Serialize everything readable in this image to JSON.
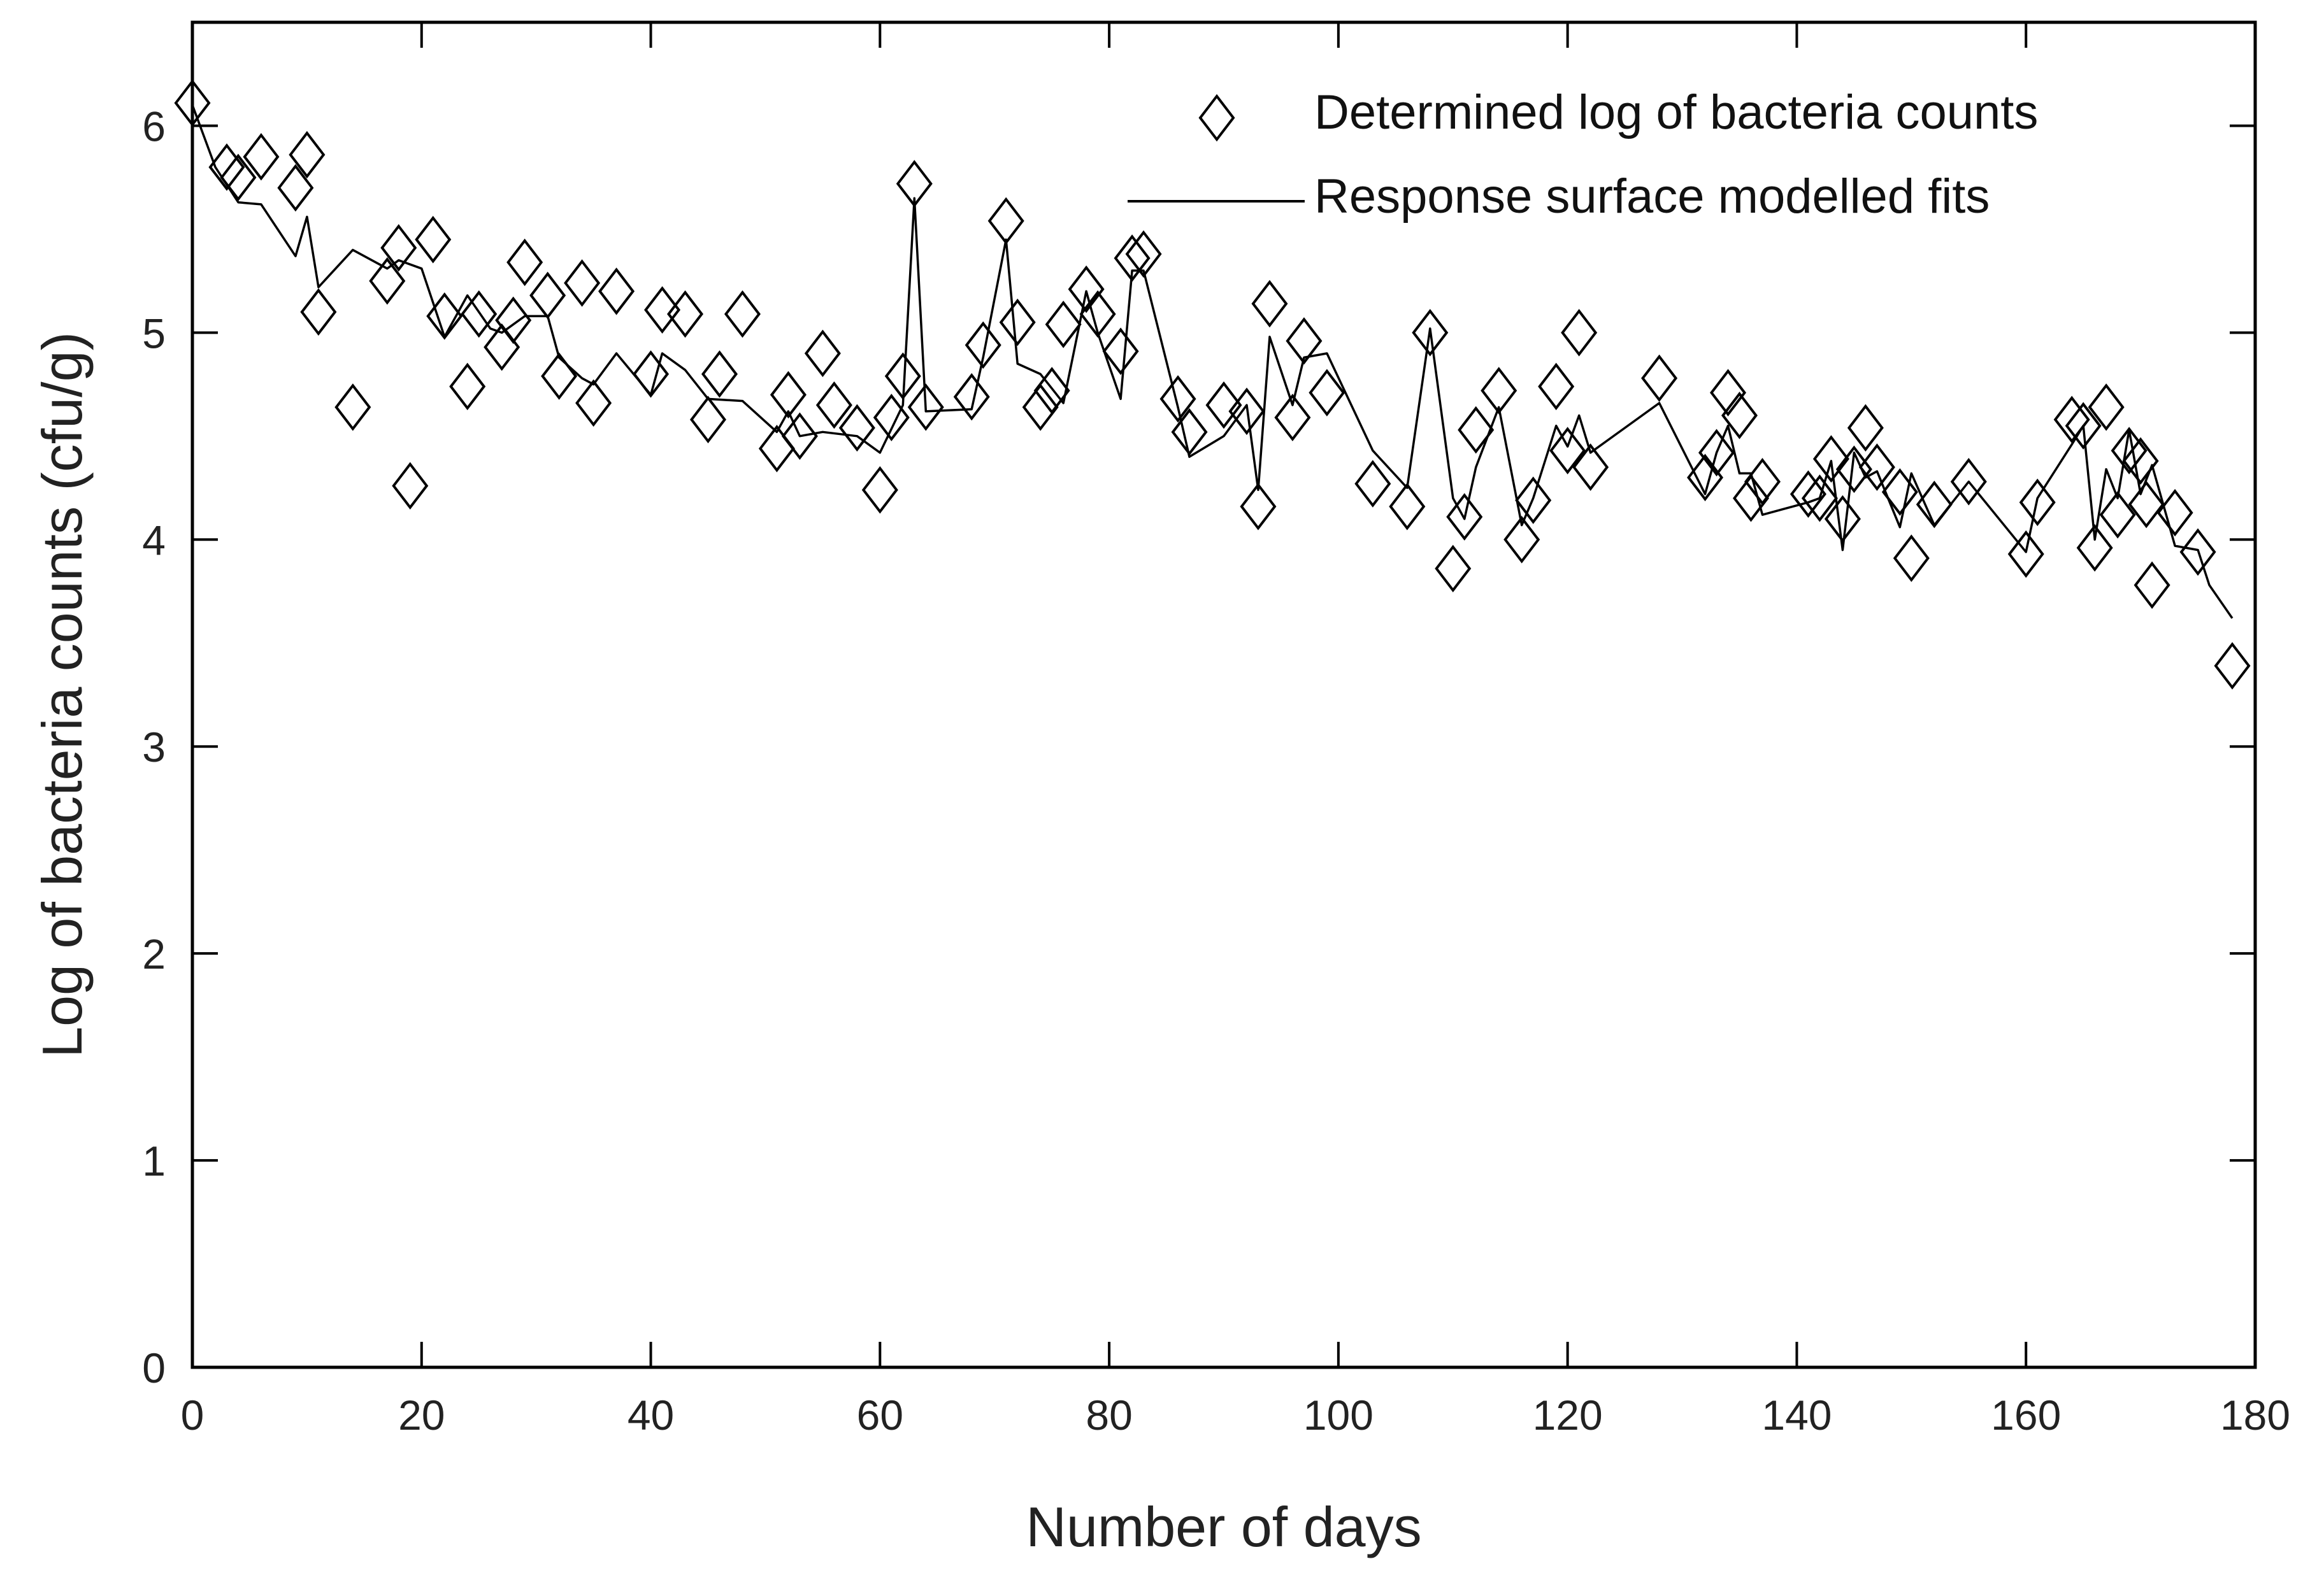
{
  "chart_data": {
    "type": "scatter",
    "xlabel": "Number of days",
    "ylabel": "Log of bacteria counts (cfu/g)",
    "xlim": [
      0,
      180
    ],
    "ylim": [
      0,
      6.5
    ],
    "x_ticks": [
      0,
      20,
      40,
      60,
      80,
      100,
      120,
      140,
      160,
      180
    ],
    "y_ticks": [
      0,
      1,
      2,
      3,
      4,
      5,
      6
    ],
    "grid": false,
    "legend_position": "top-right",
    "colors": {
      "ink": "#000000",
      "text": "#222222",
      "background": "#ffffff"
    },
    "series": [
      {
        "name": "Determined log of bacteria counts",
        "type": "scatter",
        "marker": "open-diamond",
        "points": [
          [
            0,
            6.11
          ],
          [
            3,
            5.8
          ],
          [
            4,
            5.75
          ],
          [
            6,
            5.85
          ],
          [
            9,
            5.7
          ],
          [
            10,
            5.86
          ],
          [
            11,
            5.1
          ],
          [
            14,
            4.64
          ],
          [
            17,
            5.25
          ],
          [
            18,
            5.41
          ],
          [
            19,
            4.26
          ],
          [
            21,
            5.45
          ],
          [
            22,
            5.08
          ],
          [
            24,
            4.74
          ],
          [
            25,
            5.09
          ],
          [
            27,
            4.93
          ],
          [
            28,
            5.06
          ],
          [
            29,
            5.34
          ],
          [
            31,
            5.18
          ],
          [
            32,
            4.79
          ],
          [
            34,
            5.24
          ],
          [
            35,
            4.66
          ],
          [
            37,
            5.2
          ],
          [
            40,
            4.8
          ],
          [
            41,
            5.11
          ],
          [
            43,
            5.09
          ],
          [
            45,
            4.58
          ],
          [
            46,
            4.8
          ],
          [
            48,
            5.09
          ],
          [
            51,
            4.44
          ],
          [
            52,
            4.7
          ],
          [
            53,
            4.5
          ],
          [
            55,
            4.9
          ],
          [
            56,
            4.65
          ],
          [
            58,
            4.54
          ],
          [
            60,
            4.24
          ],
          [
            61,
            4.59
          ],
          [
            62,
            4.79
          ],
          [
            63,
            5.72
          ],
          [
            64,
            4.64
          ],
          [
            68,
            4.69
          ],
          [
            69,
            4.94
          ],
          [
            71,
            5.54
          ],
          [
            72,
            5.05
          ],
          [
            74,
            4.64
          ],
          [
            75,
            4.72
          ],
          [
            76,
            5.04
          ],
          [
            78,
            5.21
          ],
          [
            79,
            5.09
          ],
          [
            81,
            4.91
          ],
          [
            82,
            5.36
          ],
          [
            83,
            5.38
          ],
          [
            86,
            4.68
          ],
          [
            87,
            4.52
          ],
          [
            90,
            4.65
          ],
          [
            92,
            4.62
          ],
          [
            93,
            4.16
          ],
          [
            94,
            5.14
          ],
          [
            96,
            4.59
          ],
          [
            97,
            4.96
          ],
          [
            99,
            4.71
          ],
          [
            103,
            4.27
          ],
          [
            106,
            4.16
          ],
          [
            108,
            5.0
          ],
          [
            110,
            3.86
          ],
          [
            111,
            4.11
          ],
          [
            112,
            4.53
          ],
          [
            114,
            4.72
          ],
          [
            116,
            4.0
          ],
          [
            117,
            4.19
          ],
          [
            119,
            4.74
          ],
          [
            120,
            4.43
          ],
          [
            121,
            5.0
          ],
          [
            122,
            4.35
          ],
          [
            128,
            4.78
          ],
          [
            132,
            4.3
          ],
          [
            133,
            4.42
          ],
          [
            134,
            4.71
          ],
          [
            135,
            4.6
          ],
          [
            136,
            4.2
          ],
          [
            137,
            4.28
          ],
          [
            141,
            4.22
          ],
          [
            142,
            4.2
          ],
          [
            143,
            4.39
          ],
          [
            144,
            4.1
          ],
          [
            145,
            4.34
          ],
          [
            146,
            4.54
          ],
          [
            147,
            4.35
          ],
          [
            149,
            4.23
          ],
          [
            150,
            3.91
          ],
          [
            152,
            4.17
          ],
          [
            155,
            4.28
          ],
          [
            160,
            3.93
          ],
          [
            161,
            4.18
          ],
          [
            164,
            4.58
          ],
          [
            165,
            4.55
          ],
          [
            166,
            3.96
          ],
          [
            167,
            4.64
          ],
          [
            168,
            4.12
          ],
          [
            169,
            4.43
          ],
          [
            170,
            4.38
          ],
          [
            170.5,
            4.17
          ],
          [
            171,
            3.78
          ],
          [
            173,
            4.13
          ],
          [
            175,
            3.94
          ],
          [
            178,
            3.39
          ]
        ]
      },
      {
        "name": "Response surface modelled fits",
        "type": "line",
        "points": [
          [
            0,
            6.1
          ],
          [
            2,
            5.8
          ],
          [
            4,
            5.63
          ],
          [
            6,
            5.62
          ],
          [
            9,
            5.37
          ],
          [
            10,
            5.56
          ],
          [
            11,
            5.22
          ],
          [
            14,
            5.4
          ],
          [
            17,
            5.31
          ],
          [
            18,
            5.35
          ],
          [
            20,
            5.31
          ],
          [
            22,
            4.98
          ],
          [
            24,
            5.18
          ],
          [
            26,
            5.02
          ],
          [
            27,
            5.0
          ],
          [
            29,
            5.08
          ],
          [
            31,
            5.08
          ],
          [
            32,
            4.88
          ],
          [
            34,
            4.78
          ],
          [
            35,
            4.75
          ],
          [
            37,
            4.9
          ],
          [
            40,
            4.7
          ],
          [
            41,
            4.9
          ],
          [
            43,
            4.82
          ],
          [
            45,
            4.68
          ],
          [
            48,
            4.67
          ],
          [
            51,
            4.52
          ],
          [
            52,
            4.62
          ],
          [
            53,
            4.5
          ],
          [
            55,
            4.52
          ],
          [
            58,
            4.5
          ],
          [
            60,
            4.42
          ],
          [
            62,
            4.65
          ],
          [
            63,
            5.65
          ],
          [
            64,
            4.62
          ],
          [
            68,
            4.63
          ],
          [
            69,
            4.88
          ],
          [
            71,
            5.45
          ],
          [
            72,
            4.85
          ],
          [
            74,
            4.8
          ],
          [
            75,
            4.73
          ],
          [
            76,
            4.66
          ],
          [
            78,
            5.2
          ],
          [
            79,
            5.0
          ],
          [
            81,
            4.68
          ],
          [
            82,
            5.3
          ],
          [
            83,
            5.3
          ],
          [
            86,
            4.64
          ],
          [
            87,
            4.4
          ],
          [
            90,
            4.5
          ],
          [
            92,
            4.65
          ],
          [
            93,
            4.24
          ],
          [
            94,
            4.98
          ],
          [
            96,
            4.65
          ],
          [
            97,
            4.88
          ],
          [
            99,
            4.9
          ],
          [
            103,
            4.43
          ],
          [
            106,
            4.25
          ],
          [
            108,
            5.02
          ],
          [
            110,
            4.2
          ],
          [
            111,
            4.1
          ],
          [
            112,
            4.35
          ],
          [
            114,
            4.64
          ],
          [
            116,
            4.07
          ],
          [
            117,
            4.2
          ],
          [
            119,
            4.55
          ],
          [
            120,
            4.45
          ],
          [
            121,
            4.6
          ],
          [
            122,
            4.42
          ],
          [
            128,
            4.66
          ],
          [
            132,
            4.22
          ],
          [
            133,
            4.42
          ],
          [
            134,
            4.55
          ],
          [
            135,
            4.32
          ],
          [
            136,
            4.32
          ],
          [
            137,
            4.12
          ],
          [
            141,
            4.18
          ],
          [
            142,
            4.2
          ],
          [
            143,
            4.38
          ],
          [
            144,
            3.95
          ],
          [
            145,
            4.42
          ],
          [
            146,
            4.3
          ],
          [
            147,
            4.33
          ],
          [
            149,
            4.06
          ],
          [
            150,
            4.32
          ],
          [
            152,
            4.07
          ],
          [
            155,
            4.28
          ],
          [
            160,
            3.94
          ],
          [
            161,
            4.2
          ],
          [
            164,
            4.46
          ],
          [
            165,
            4.55
          ],
          [
            166,
            4.0
          ],
          [
            167,
            4.34
          ],
          [
            168,
            4.2
          ],
          [
            169,
            4.53
          ],
          [
            170,
            4.22
          ],
          [
            171,
            4.36
          ],
          [
            173,
            3.97
          ],
          [
            175,
            3.95
          ],
          [
            176,
            3.78
          ],
          [
            178,
            3.62
          ]
        ]
      }
    ]
  }
}
